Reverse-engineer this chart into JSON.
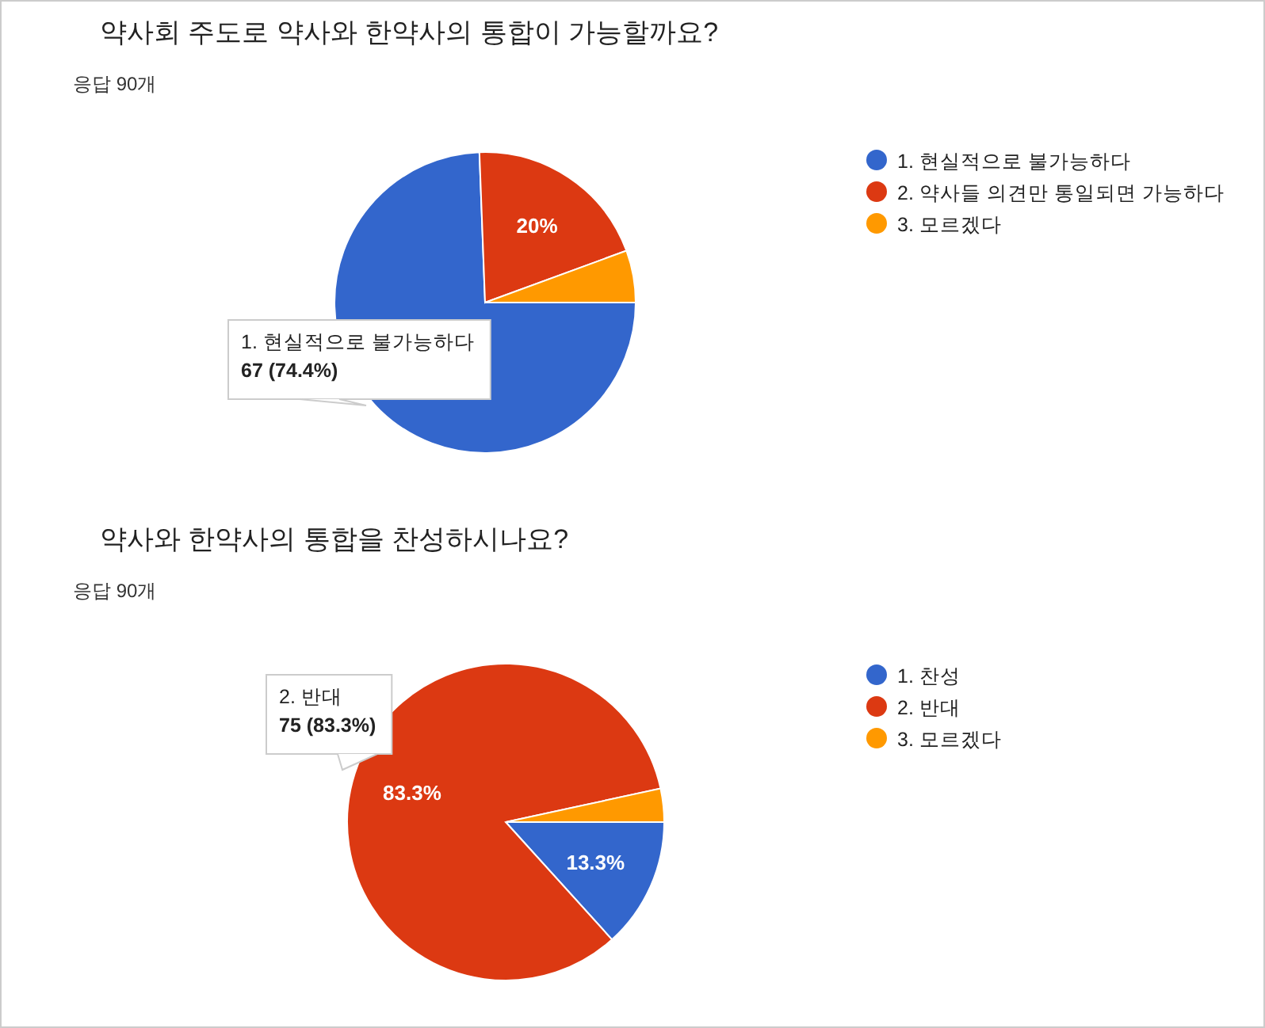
{
  "chart_data": [
    {
      "type": "pie",
      "title": "약사회 주도로 약사와 한약사의 통합이 가능할까요?",
      "subtitle": "응답 90개",
      "categories": [
        "1. 현실적으로 불가능하다",
        "2. 약사들 의견만 통일되면 가능하다",
        "3. 모르겠다"
      ],
      "values": [
        74.4,
        20,
        5.6
      ],
      "colors": [
        "#3366cc",
        "#dc3912",
        "#ff9900"
      ],
      "value_labels": [
        null,
        "20%",
        null
      ],
      "annotations": [
        "1. 현실적으로 불가능하다\n67 (74.4%)"
      ],
      "legend": "right"
    },
    {
      "type": "pie",
      "title": "약사와 한약사의 통합을 찬성하시나요?",
      "subtitle": "응답 90개",
      "categories": [
        "1. 찬성",
        "2. 반대",
        "3. 모르겠다"
      ],
      "values": [
        13.3,
        83.3,
        3.4
      ],
      "colors": [
        "#3366cc",
        "#dc3912",
        "#ff9900"
      ],
      "value_labels": [
        "13.3%",
        "83.3%",
        null
      ],
      "annotations": [
        "2. 반대\n75 (83.3%)"
      ],
      "legend": "right"
    }
  ]
}
